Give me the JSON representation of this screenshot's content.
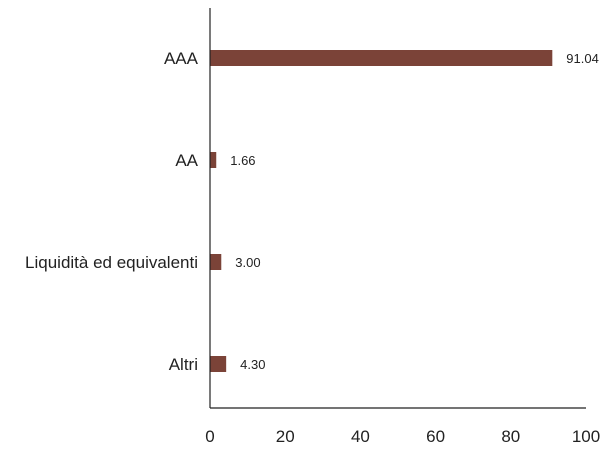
{
  "chart_data": {
    "type": "bar",
    "orientation": "horizontal",
    "categories": [
      "AAA",
      "AA",
      "Liquidità ed equivalenti",
      "Altri"
    ],
    "values": [
      91.04,
      1.66,
      3.0,
      4.3
    ],
    "value_labels": [
      "91.04",
      "1.66",
      "3.00",
      "4.30"
    ],
    "xlim": [
      0,
      100
    ],
    "xticks": [
      "0",
      "20",
      "40",
      "60",
      "80",
      "100"
    ],
    "grid": false,
    "legend": "none",
    "bar_color": "#7b4338",
    "axis_color": "#222222"
  }
}
